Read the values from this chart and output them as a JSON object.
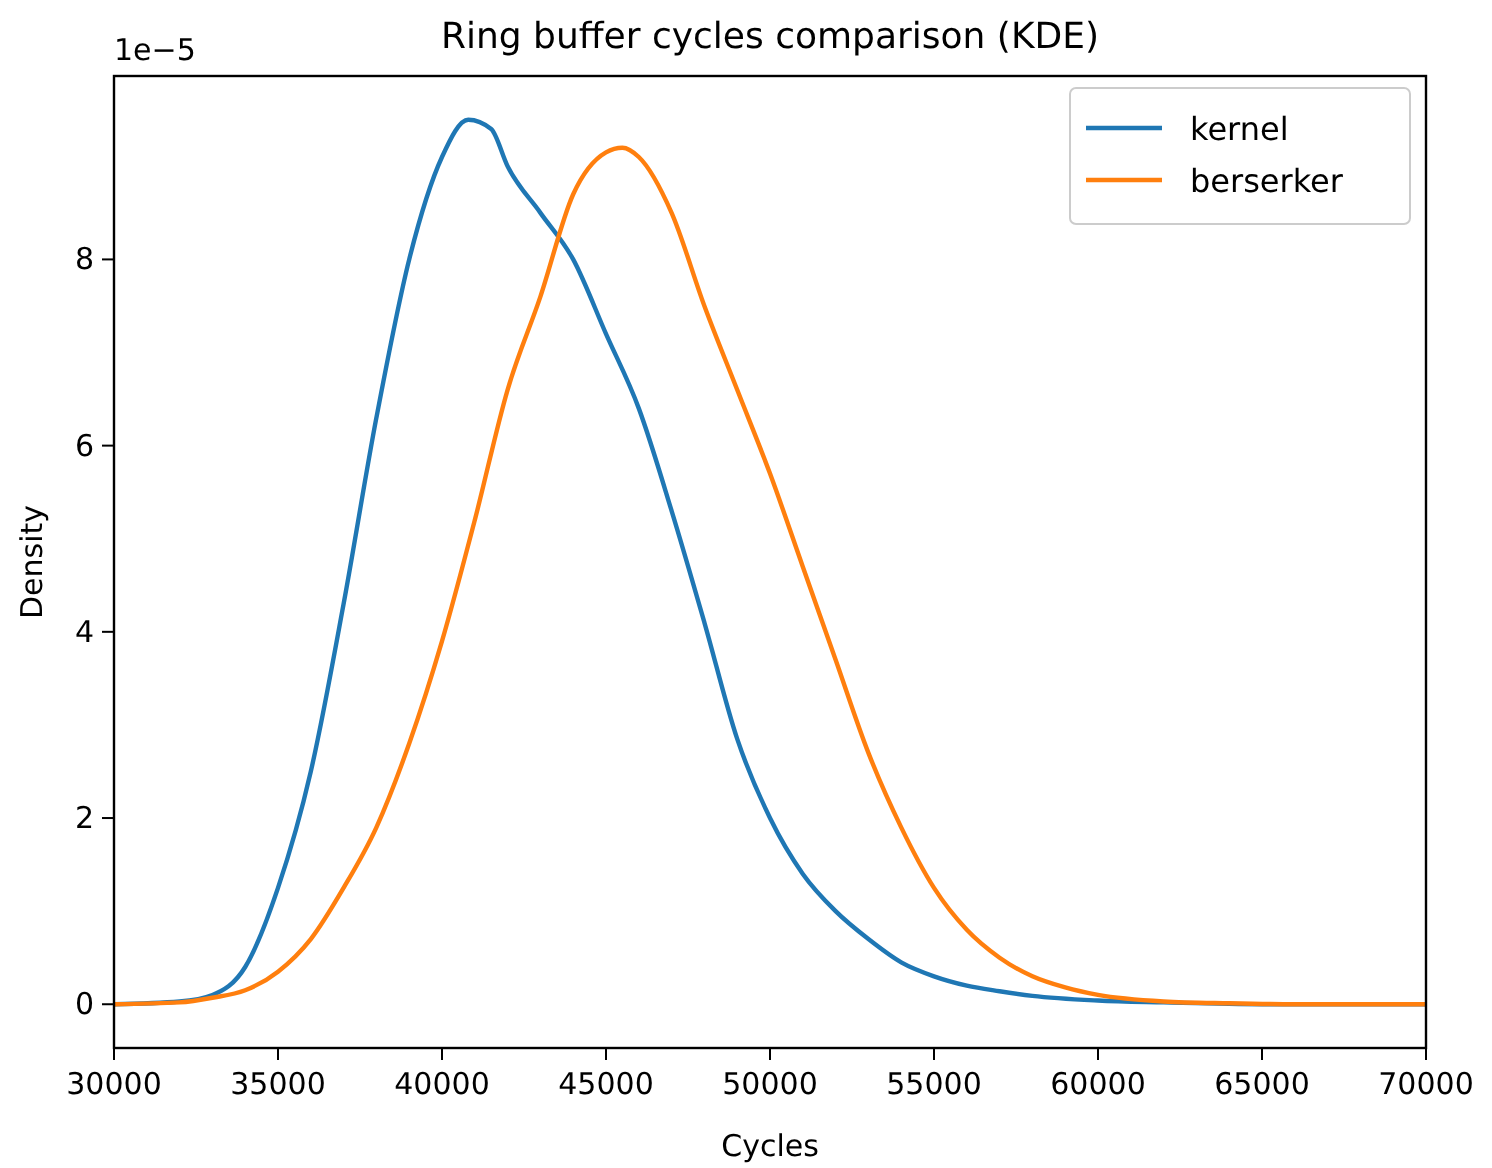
{
  "chart_data": {
    "type": "line",
    "title": "Ring buffer cycles comparison (KDE)",
    "xlabel": "Cycles",
    "ylabel": "Density",
    "annotations": [
      "1e−5"
    ],
    "x": [
      30000,
      32000,
      33000,
      34000,
      35000,
      36000,
      37000,
      38000,
      39000,
      40000,
      40800,
      41500,
      42000,
      43000,
      44000,
      45000,
      46000,
      47000,
      48000,
      49000,
      50000,
      51000,
      52000,
      53000,
      54000,
      55000,
      56000,
      57000,
      58000,
      60000,
      62000,
      65000,
      70000
    ],
    "series": [
      {
        "name": "kernel",
        "color": "#1f77b4",
        "values": [
          0,
          0.03,
          0.1,
          0.4,
          1.25,
          2.5,
          4.3,
          6.3,
          8.0,
          9.1,
          9.5,
          9.4,
          9.0,
          8.5,
          8.0,
          7.2,
          6.4,
          5.3,
          4.1,
          2.85,
          2.0,
          1.4,
          1.0,
          0.7,
          0.45,
          0.3,
          0.2,
          0.14,
          0.09,
          0.04,
          0.02,
          0,
          0
        ]
      },
      {
        "name": "berserker",
        "color": "#ff7f0e",
        "x": [
          30000,
          32000,
          33000,
          34000,
          35000,
          36000,
          37000,
          38000,
          39000,
          40000,
          41000,
          42000,
          43000,
          44000,
          45000,
          45500,
          46000,
          47000,
          48000,
          49000,
          50000,
          51000,
          52000,
          53000,
          54000,
          55000,
          56000,
          57000,
          58000,
          59000,
          60000,
          62000,
          64000,
          66000,
          70000
        ],
        "values": [
          0,
          0.02,
          0.07,
          0.15,
          0.35,
          0.7,
          1.25,
          1.9,
          2.8,
          3.9,
          5.2,
          6.6,
          7.6,
          8.7,
          9.15,
          9.2,
          9.1,
          8.5,
          7.5,
          6.6,
          5.7,
          4.7,
          3.7,
          2.7,
          1.9,
          1.25,
          0.8,
          0.5,
          0.3,
          0.18,
          0.1,
          0.03,
          0.01,
          0,
          0
        ]
      }
    ],
    "xlim": [
      30000,
      70000
    ],
    "xticks": [
      30000,
      35000,
      40000,
      45000,
      50000,
      55000,
      60000,
      65000,
      70000
    ],
    "ylim": [
      -0.47,
      9.97
    ],
    "yticks": [
      0,
      2,
      4,
      6,
      8
    ],
    "grid": false,
    "legend": "top right",
    "marker": "none",
    "line_style": "solid"
  }
}
